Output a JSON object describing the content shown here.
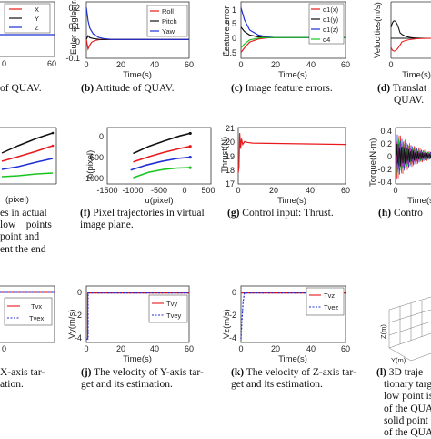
{
  "captions": {
    "a": {
      "tag": "",
      "lines": [
        "of QUAV."
      ]
    },
    "b": {
      "tag": "(b)",
      "lines": [
        "Attitude of QUAV."
      ]
    },
    "c": {
      "tag": "(c)",
      "lines": [
        "Image feature errors."
      ]
    },
    "d": {
      "tag": "(d)",
      "lines": [
        "Translat",
        "QUAV."
      ]
    },
    "e": {
      "tag": "",
      "lines": [
        "es in actual",
        "low    points",
        "point and",
        "ent the end"
      ]
    },
    "f": {
      "tag": "(f)",
      "lines": [
        "Pixel trajectories in virtual",
        "image plane."
      ]
    },
    "g": {
      "tag": "(g)",
      "lines": [
        "Control input: Thrust."
      ]
    },
    "h": {
      "tag": "(h)",
      "lines": [
        "Contro"
      ]
    },
    "i": {
      "tag": "",
      "lines": [
        "X-axis tar-",
        "ation."
      ]
    },
    "j": {
      "tag": "(j)",
      "lines": [
        "The velocity of Y-axis tar-",
        "get and its estimation."
      ]
    },
    "k": {
      "tag": "(k)",
      "lines": [
        "The velocity of Z-axis tar-",
        "get and its estimation."
      ]
    },
    "l": {
      "tag": "(l)",
      "lines": [
        "3D traje",
        "tionary targe",
        "low point is",
        "of the QUA",
        "solid point is",
        "of the QUA"
      ]
    }
  },
  "colors": {
    "red": "#e8191c",
    "black": "#111111",
    "blue": "#1f2fd6",
    "green": "#18c41f",
    "magenta": "#cc2ccc",
    "axis": "#333333"
  },
  "chart_data": [
    {
      "id": "a",
      "type": "line",
      "xlabel": "",
      "ylabel": "",
      "x_ticks": [
        "0",
        "60"
      ],
      "legend": [
        "X",
        "Y",
        "Z"
      ],
      "legend_colors": [
        "red",
        "black",
        "blue"
      ]
    },
    {
      "id": "b",
      "type": "line",
      "xlabel": "Time(s)",
      "ylabel": "Euler angles(rad)",
      "x_ticks": [
        "0",
        "20",
        "40",
        "60"
      ],
      "y_ticks": [
        "0.2",
        "0.1",
        "0",
        "-0.1"
      ],
      "xlim": [
        0,
        60
      ],
      "ylim": [
        -0.1,
        0.2
      ],
      "legend": [
        "Roll",
        "Pitch",
        "Yaw"
      ],
      "legend_colors": [
        "red",
        "black",
        "blue"
      ],
      "series": [
        {
          "name": "Roll",
          "color": "red",
          "x": [
            0,
            1,
            2,
            3,
            5,
            8,
            12,
            60
          ],
          "y": [
            0,
            -0.05,
            -0.03,
            -0.015,
            -0.005,
            0,
            0,
            0
          ]
        },
        {
          "name": "Pitch",
          "color": "black",
          "x": [
            0,
            1,
            2,
            4,
            8,
            60
          ],
          "y": [
            0,
            0.02,
            0.01,
            0.005,
            0,
            0
          ]
        },
        {
          "name": "Yaw",
          "color": "blue",
          "x": [
            0,
            1,
            2,
            4,
            7,
            10,
            15,
            60
          ],
          "y": [
            0.17,
            0.1,
            0.06,
            0.03,
            0.012,
            0.005,
            0,
            0
          ]
        }
      ]
    },
    {
      "id": "c",
      "type": "line",
      "xlabel": "Time(s)",
      "ylabel": "Feature error",
      "x_ticks": [
        "0",
        "20",
        "40",
        "60"
      ],
      "y_ticks": [
        "1",
        "0.5",
        "0",
        "-0.5"
      ],
      "xlim": [
        0,
        60
      ],
      "ylim": [
        -0.7,
        1.2
      ],
      "legend": [
        "q1(x)",
        "q1(y)",
        "q1(z)",
        "q4"
      ],
      "legend_colors": [
        "red",
        "black",
        "blue",
        "green"
      ],
      "series": [
        {
          "name": "q1(x)",
          "color": "red",
          "x": [
            0,
            2,
            5,
            10,
            15,
            20,
            60
          ],
          "y": [
            -0.5,
            -0.35,
            -0.15,
            -0.05,
            -0.01,
            0,
            0
          ]
        },
        {
          "name": "q1(y)",
          "color": "black",
          "x": [
            0,
            2,
            5,
            10,
            15,
            60
          ],
          "y": [
            0.35,
            0.2,
            0.08,
            0.02,
            0,
            0
          ]
        },
        {
          "name": "q1(z)",
          "color": "blue",
          "x": [
            0,
            2,
            5,
            10,
            15,
            20,
            60
          ],
          "y": [
            1.0,
            0.6,
            0.25,
            0.08,
            0.02,
            0,
            0
          ]
        },
        {
          "name": "q4",
          "color": "green",
          "x": [
            0,
            2,
            5,
            10,
            15,
            60
          ],
          "y": [
            -0.35,
            -0.22,
            -0.08,
            -0.02,
            0,
            0
          ]
        }
      ]
    },
    {
      "id": "d",
      "type": "line",
      "xlabel": "Time(s)",
      "ylabel": "Velocities(m/s)",
      "x_ticks": [
        "0"
      ]
    },
    {
      "id": "e",
      "type": "line",
      "xlabel": "(pixel)",
      "ylabel": ""
    },
    {
      "id": "f",
      "type": "line",
      "xlabel": "u(pixel)",
      "ylabel": "n(pixel)",
      "x_ticks": [
        "-1500",
        "-1000",
        "-500",
        "0",
        "500"
      ],
      "y_ticks": [
        "0",
        "-500",
        "-1000"
      ],
      "xlim": [
        -1500,
        500
      ],
      "ylim": [
        -1150,
        200
      ],
      "series": [
        {
          "name": "",
          "color": "black",
          "x": [
            -1000,
            -700,
            -400,
            -100,
            100
          ],
          "y": [
            -420,
            -250,
            -120,
            0,
            60
          ]
        },
        {
          "name": "",
          "color": "red",
          "x": [
            -1000,
            -700,
            -400,
            -100,
            100
          ],
          "y": [
            -620,
            -500,
            -390,
            -300,
            -250
          ]
        },
        {
          "name": "",
          "color": "blue",
          "x": [
            -1050,
            -750,
            -450,
            -150,
            100
          ],
          "y": [
            -820,
            -700,
            -610,
            -540,
            -510
          ]
        },
        {
          "name": "",
          "color": "green",
          "x": [
            -1000,
            -700,
            -400,
            -150,
            100
          ],
          "y": [
            -1000,
            -870,
            -800,
            -770,
            -760
          ]
        }
      ]
    },
    {
      "id": "g",
      "type": "line",
      "xlabel": "Time(s)",
      "ylabel": "Thrust(N)",
      "x_ticks": [
        "0",
        "20",
        "40",
        "60"
      ],
      "y_ticks": [
        "21",
        "20",
        "19",
        "18",
        "17"
      ],
      "xlim": [
        0,
        60
      ],
      "ylim": [
        17,
        21
      ],
      "series": [
        {
          "name": "",
          "color": "red",
          "x": [
            0,
            0.4,
            0.8,
            1.3,
            1.8,
            2.5,
            3.5,
            5,
            8,
            60
          ],
          "y": [
            17.8,
            18.2,
            20.6,
            19.5,
            20.2,
            19.8,
            20,
            19.95,
            19.9,
            19.8
          ]
        }
      ]
    },
    {
      "id": "h",
      "type": "line",
      "xlabel": "Time(s)",
      "ylabel": "Torque(N·m)",
      "x_ticks": [
        "0"
      ],
      "y_ticks": [
        "0.4",
        "0.2",
        "0",
        "-0.2",
        "-0.4"
      ]
    },
    {
      "id": "i",
      "type": "line",
      "xlabel": "",
      "ylabel": "",
      "x_ticks": [
        "0"
      ],
      "legend": [
        "Tvx",
        "Tvex"
      ]
    },
    {
      "id": "j",
      "type": "line",
      "xlabel": "Time(s)",
      "ylabel": "Vy(m/s)",
      "x_ticks": [
        "0",
        "20",
        "40",
        "60"
      ],
      "y_ticks": [
        "0",
        "-2",
        "-4"
      ],
      "xlim": [
        0,
        60
      ],
      "ylim": [
        -4.3,
        0.6
      ],
      "legend": [
        "Tvy",
        "Tvey"
      ],
      "legend_colors": [
        "red",
        "blue"
      ],
      "series": [
        {
          "name": "Tvy",
          "color": "red",
          "x": [
            0,
            0.8,
            0.8,
            60
          ],
          "y": [
            -4,
            -4,
            0,
            0
          ]
        },
        {
          "name": "Tvey",
          "color": "blue",
          "x": [
            0,
            1,
            1,
            60
          ],
          "y": [
            -4,
            -4,
            0,
            0
          ]
        }
      ]
    },
    {
      "id": "k",
      "type": "line",
      "xlabel": "Time(s)",
      "ylabel": "Vz(m/s)",
      "x_ticks": [
        "0",
        "20",
        "40",
        "60"
      ],
      "y_ticks": [
        "0",
        "-2",
        "-4"
      ],
      "xlim": [
        0,
        60
      ],
      "ylim": [
        -4.3,
        0.6
      ],
      "legend": [
        "Tvz",
        "Tvez"
      ],
      "legend_colors": [
        "red",
        "blue"
      ],
      "series": [
        {
          "name": "Tvz",
          "color": "red",
          "x": [
            0,
            60
          ],
          "y": [
            0,
            0
          ]
        },
        {
          "name": "Tvez",
          "color": "blue",
          "x": [
            0,
            0.5,
            1.2,
            2,
            60
          ],
          "y": [
            -4,
            -2.5,
            -0.8,
            0,
            0
          ]
        }
      ]
    },
    {
      "id": "l",
      "type": "scatter",
      "xlabel": "Y(m)",
      "ylabel": "Z(m)"
    }
  ]
}
